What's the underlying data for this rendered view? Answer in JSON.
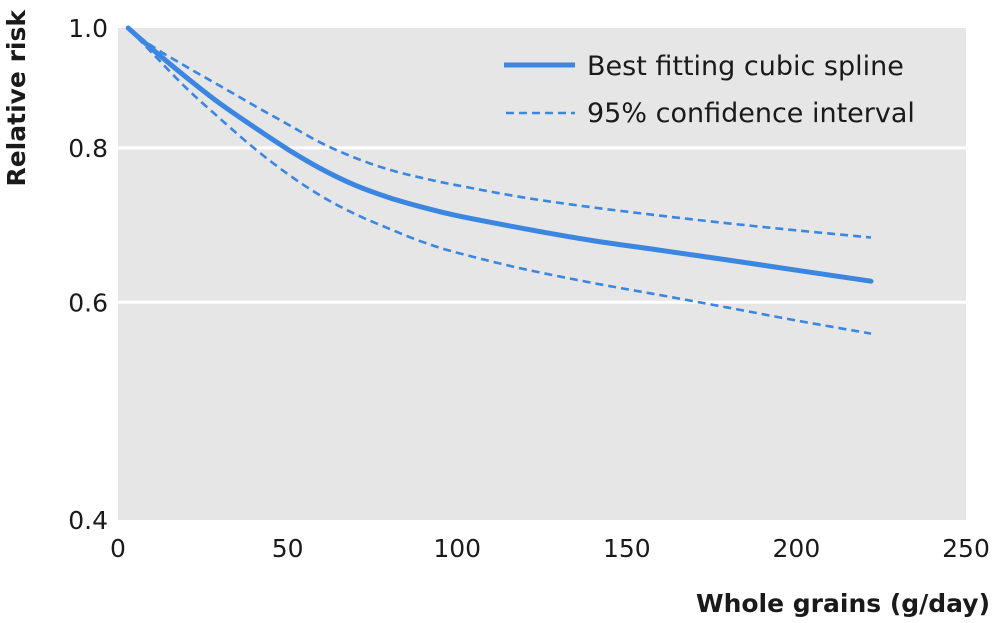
{
  "chart_data": {
    "type": "line",
    "xlabel": "Whole grains (g/day)",
    "ylabel": "Relative risk",
    "xlim": [
      0,
      250
    ],
    "ylim": [
      0.4,
      1.0
    ],
    "y_scale": "log",
    "x_ticks": [
      "0",
      "50",
      "100",
      "150",
      "200",
      "250"
    ],
    "y_ticks": [
      "0.4",
      "0.6",
      "0.8",
      "1.0"
    ],
    "grid": "horizontal",
    "legend": "top-right",
    "colors": {
      "line": "#3a86e0",
      "plot_bg": "#e6e6e6",
      "grid": "#ffffff"
    },
    "series": [
      {
        "name": "Best fitting cubic spline",
        "style": "solid",
        "x": [
          3,
          10,
          20,
          30,
          40,
          50,
          60,
          70,
          80,
          90,
          100,
          120,
          140,
          160,
          180,
          200,
          222
        ],
        "y": [
          1.0,
          0.962,
          0.913,
          0.869,
          0.832,
          0.798,
          0.769,
          0.746,
          0.729,
          0.716,
          0.705,
          0.688,
          0.673,
          0.661,
          0.649,
          0.637,
          0.624
        ]
      },
      {
        "name": "95% confidence interval",
        "style": "dashed",
        "x": [
          3,
          10,
          20,
          30,
          40,
          50,
          60,
          70,
          80,
          90,
          100,
          120,
          140,
          160,
          180,
          200,
          222
        ],
        "y": [
          1.0,
          0.967,
          0.931,
          0.898,
          0.866,
          0.836,
          0.807,
          0.785,
          0.768,
          0.756,
          0.746,
          0.729,
          0.716,
          0.705,
          0.695,
          0.686,
          0.677
        ]
      },
      {
        "name": "",
        "style": "dashed",
        "x": [
          3,
          10,
          20,
          30,
          40,
          50,
          60,
          70,
          80,
          90,
          100,
          120,
          140,
          160,
          180,
          200,
          222
        ],
        "y": [
          1.0,
          0.955,
          0.895,
          0.845,
          0.8,
          0.762,
          0.731,
          0.707,
          0.688,
          0.671,
          0.658,
          0.638,
          0.622,
          0.608,
          0.594,
          0.58,
          0.566
        ]
      }
    ]
  }
}
